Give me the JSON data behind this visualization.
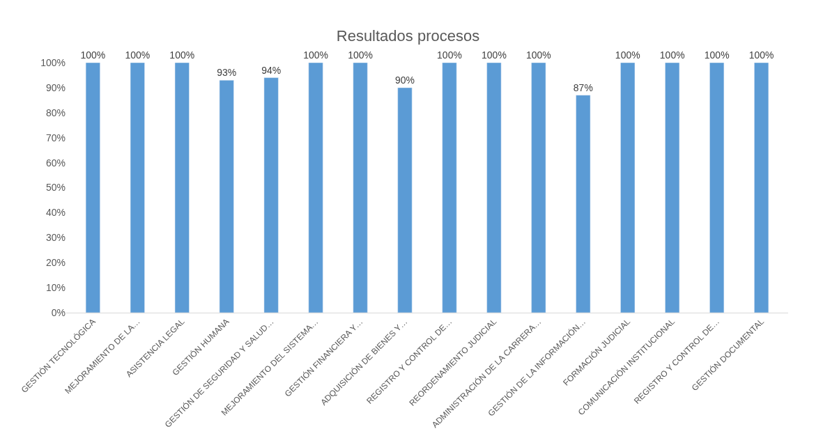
{
  "chart_data": {
    "type": "bar",
    "title": "Resultados procesos",
    "categories": [
      "GESTIÓN TECNOLÓGICA",
      "MEJORAMIENTO DE LA…",
      "ASISTENCIA LEGAL",
      "GESTIÓN HUMANA",
      "GESTIÓN DE SEGURIDAD Y SALUD…",
      "MEJORAMIENTO DEL SISTEMA…",
      "GESTIÓN FINANCIERA Y…",
      "ADQUISICIÓN DE BIENES Y…",
      "REGISTRO Y CONTROL DE…",
      "REORDENAMIENTO JUDICIAL",
      "ADMINISTRACIÓN DE LA CARRERA…",
      "GESTIÓN DE LA INFORMACIÓN…",
      "FORMACIÓN JUDICIAL",
      "COMUNICACIÓN INSTITUCIONAL",
      "REGISTRO Y CONTROL DE…",
      "GESTIÓN DOCUMENTAL"
    ],
    "values": [
      100,
      100,
      100,
      93,
      94,
      100,
      100,
      90,
      100,
      100,
      100,
      87,
      100,
      100,
      100,
      100
    ],
    "value_labels": [
      "100%",
      "100%",
      "100%",
      "93%",
      "94%",
      "100%",
      "100%",
      "90%",
      "100%",
      "100%",
      "100%",
      "87%",
      "100%",
      "100%",
      "100%",
      "100%"
    ],
    "color": "#5b9bd5",
    "ylim": [
      0,
      100
    ],
    "yticks": [
      {
        "value": 0,
        "label": "0%"
      },
      {
        "value": 10,
        "label": "10%"
      },
      {
        "value": 20,
        "label": "20%"
      },
      {
        "value": 30,
        "label": "30%"
      },
      {
        "value": 40,
        "label": "40%"
      },
      {
        "value": 50,
        "label": "50%"
      },
      {
        "value": 60,
        "label": "60%"
      },
      {
        "value": 70,
        "label": "70%"
      },
      {
        "value": 80,
        "label": "80%"
      },
      {
        "value": 90,
        "label": "90%"
      },
      {
        "value": 100,
        "label": "100%"
      }
    ]
  }
}
